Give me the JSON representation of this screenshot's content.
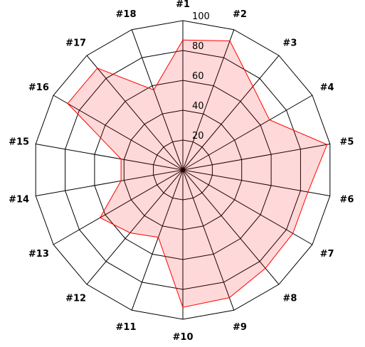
{
  "chart_data": {
    "type": "radar",
    "categories": [
      "#1",
      "#2",
      "#3",
      "#4",
      "#5",
      "#6",
      "#7",
      "#8",
      "#9",
      "#10",
      "#11",
      "#12",
      "#13",
      "#14",
      "#15",
      "#16",
      "#17",
      "#18"
    ],
    "values": [
      87,
      92,
      73,
      67,
      98,
      85,
      85,
      86,
      91,
      92,
      48,
      55,
      64,
      42,
      42,
      89,
      89,
      57
    ],
    "rlim": [
      0,
      100
    ],
    "ticks": [
      "20",
      "40",
      "60",
      "80",
      "100"
    ],
    "grid": true,
    "colors": {
      "line": "#ff0000",
      "fill": "#ffdada",
      "grid": "#000000"
    }
  }
}
